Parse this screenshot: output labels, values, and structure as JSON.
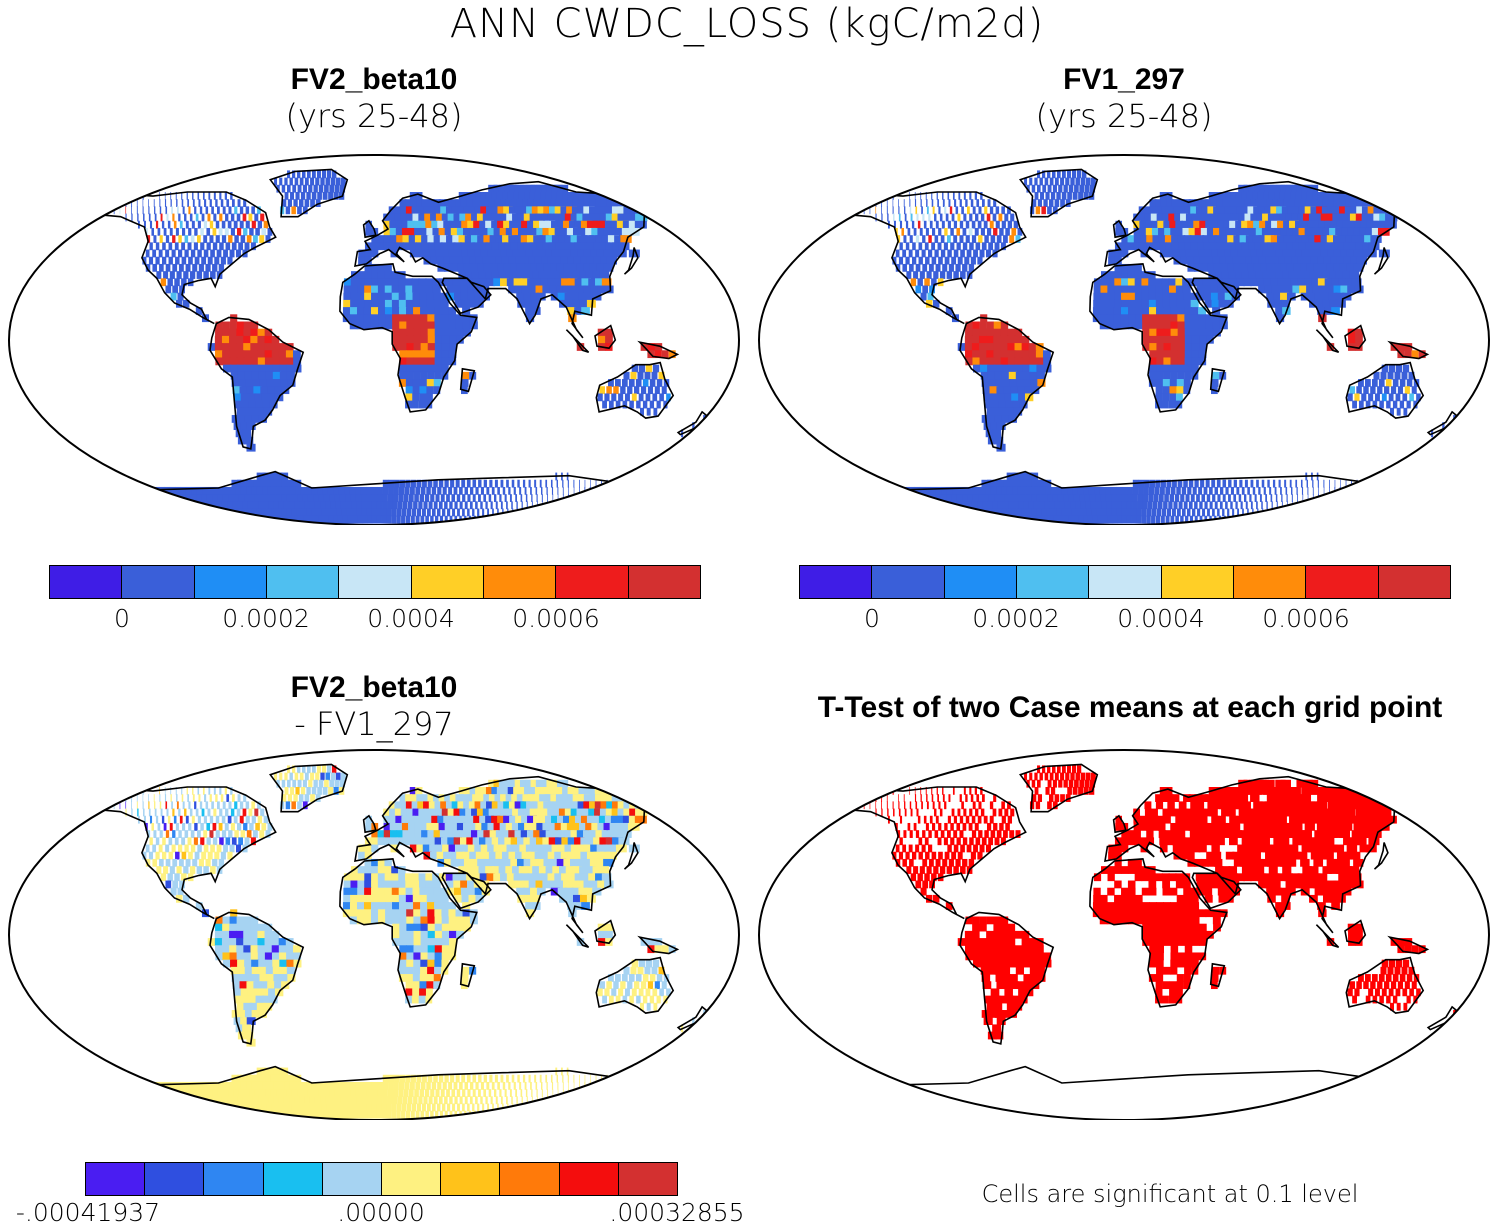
{
  "title": "ANN CWDC_LOSS (kgC/m2d)",
  "panels": {
    "tl": {
      "title": "FV2_beta10",
      "subtitle": "(yrs 25-48)"
    },
    "tr": {
      "title": "FV1_297",
      "subtitle": "(yrs 25-48)"
    },
    "bl": {
      "title": "FV2_beta10",
      "subtitle": "- FV1_297"
    },
    "br": {
      "title": "T-Test of two Case means at each grid point",
      "note": "Cells are significant at 0.1 level"
    }
  },
  "colorbars": {
    "top": {
      "colors": [
        "#3f1de6",
        "#3a5fd9",
        "#1f8ef5",
        "#4fbff0",
        "#c8e6f6",
        "#ffcf26",
        "#ff8c0a",
        "#ee1c1c",
        "#d33030"
      ],
      "labels": [
        "0",
        "0.0002",
        "0.0004",
        "0.0006"
      ]
    },
    "bottom": {
      "colors": [
        "#4a1df2",
        "#2f4fe0",
        "#2f86f2",
        "#19bff0",
        "#a6d3f2",
        "#fef181",
        "#ffc21a",
        "#ff7a0a",
        "#f40d0d",
        "#d33030"
      ],
      "labels": [
        "-.00041937",
        ".00000",
        ".00032855"
      ]
    }
  },
  "significance_color": "#ff0000",
  "land_colors": {
    "tl_base": "#3b5ed8",
    "tr_base": "#3b5ed8",
    "bl_base": "#fef181",
    "br_base": "#ff0000"
  }
}
